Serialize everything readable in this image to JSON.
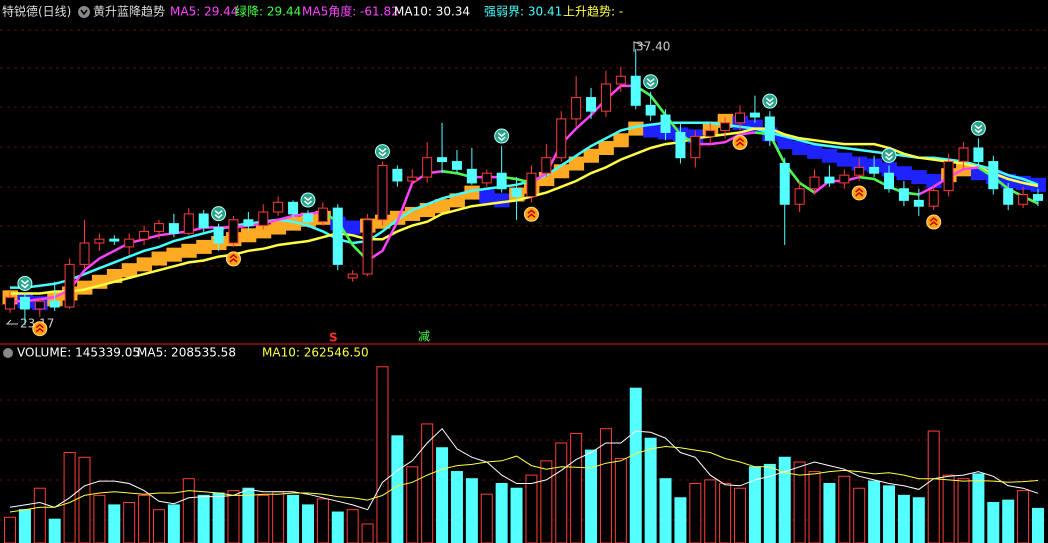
{
  "chart_data": {
    "type": "candlestick",
    "title": "特锐德(日线)",
    "indicator": "黄升蓝降趋势",
    "legend": [
      {
        "text": "MA5: 29.44",
        "color": "#ff44ff"
      },
      {
        "text": "绿降: 29.44",
        "color": "#44ff44"
      },
      {
        "text": "MA5角度: -61.82",
        "color": "#ff44ff"
      },
      {
        "text": "MA10: 30.34",
        "color": "#ffffff"
      },
      {
        "text": "强弱界: 30.41",
        "color": "#44ffff"
      },
      {
        "text": "上升趋势: -",
        "color": "#ffff44"
      }
    ],
    "annotations": {
      "high": "37.40",
      "low": "23.17",
      "s": "S",
      "jian": "减"
    },
    "ylim": [
      22.4,
      38.9
    ],
    "open": [
      24.0,
      24.6,
      24.0,
      24.4,
      24.1,
      26.3,
      27.4,
      27.6,
      27.2,
      27.6,
      28.0,
      28.4,
      27.9,
      28.9,
      28.2,
      27.4,
      28.6,
      28.3,
      29.0,
      29.5,
      28.9,
      28.5,
      29.2,
      25.6,
      25.8,
      28.6,
      31.2,
      30.6,
      30.8,
      31.8,
      31.6,
      31.2,
      30.5,
      31.0,
      30.2,
      29.8,
      31.0,
      31.8,
      33.8,
      34.9,
      34.2,
      35.6,
      36.0,
      34.5,
      34.0,
      33.1,
      31.8,
      32.9,
      33.2,
      33.6,
      34.1,
      33.9,
      31.5,
      29.4,
      30.2,
      30.8,
      30.5,
      30.9,
      31.3,
      31.0,
      30.2,
      29.6,
      29.3,
      30.1,
      31.6,
      32.3,
      31.6,
      30.2,
      29.4,
      29.9
    ],
    "high": [
      24.9,
      24.8,
      24.6,
      25.4,
      26.6,
      28.6,
      27.9,
      27.8,
      27.9,
      28.3,
      28.6,
      28.9,
      29.2,
      29.1,
      28.4,
      28.8,
      29.0,
      29.4,
      29.8,
      29.6,
      29.1,
      29.5,
      29.4,
      26.0,
      28.9,
      31.6,
      31.4,
      31.2,
      32.6,
      33.6,
      32.2,
      32.3,
      31.2,
      32.4,
      30.8,
      31.4,
      32.5,
      34.2,
      36.0,
      35.4,
      36.3,
      36.5,
      37.4,
      35.2,
      34.3,
      33.6,
      33.2,
      33.6,
      33.9,
      34.5,
      35.0,
      34.2,
      31.8,
      30.6,
      31.2,
      31.4,
      31.2,
      31.8,
      31.9,
      31.4,
      30.6,
      30.2,
      30.4,
      32.0,
      32.6,
      32.8,
      31.9,
      30.5,
      30.3,
      30.2
    ],
    "low": [
      23.8,
      23.17,
      23.6,
      23.9,
      24.0,
      26.1,
      27.0,
      27.3,
      26.8,
      27.3,
      27.6,
      27.7,
      27.8,
      27.9,
      27.0,
      27.2,
      28.0,
      28.1,
      28.8,
      28.7,
      28.2,
      28.3,
      26.0,
      25.4,
      25.7,
      28.3,
      30.3,
      30.4,
      30.5,
      31.0,
      31.0,
      30.4,
      30.3,
      30.0,
      28.6,
      29.5,
      30.8,
      31.6,
      33.4,
      33.8,
      33.9,
      35.2,
      34.3,
      33.7,
      32.7,
      31.5,
      31.3,
      32.5,
      32.8,
      33.2,
      33.6,
      32.4,
      27.3,
      29.0,
      29.9,
      30.3,
      30.2,
      30.6,
      30.8,
      30.0,
      29.3,
      28.8,
      29.1,
      29.8,
      31.2,
      31.4,
      29.9,
      29.1,
      29.2,
      29.3
    ],
    "close": [
      24.6,
      24.0,
      24.4,
      24.1,
      26.3,
      27.4,
      27.6,
      27.5,
      27.6,
      28.0,
      28.4,
      27.9,
      28.9,
      28.2,
      27.4,
      28.6,
      28.3,
      29.0,
      29.5,
      28.9,
      28.5,
      29.2,
      26.3,
      25.8,
      28.6,
      31.4,
      30.6,
      30.8,
      31.8,
      31.6,
      31.2,
      30.5,
      31.0,
      30.2,
      29.8,
      31.0,
      31.8,
      33.8,
      34.9,
      34.2,
      35.6,
      36.0,
      34.5,
      34.0,
      33.1,
      31.8,
      32.9,
      33.2,
      33.6,
      34.1,
      33.9,
      32.7,
      29.4,
      30.2,
      30.8,
      30.5,
      30.9,
      31.3,
      31.0,
      30.2,
      29.6,
      29.3,
      30.1,
      31.6,
      32.3,
      31.6,
      30.2,
      29.4,
      29.9,
      29.6
    ],
    "ma5": [
      24.4,
      24.4,
      24.5,
      24.6,
      25.0,
      26.0,
      26.6,
      27.0,
      27.4,
      27.6,
      27.8,
      27.9,
      28.0,
      28.2,
      28.2,
      28.2,
      28.3,
      28.4,
      28.6,
      28.8,
      28.9,
      29.0,
      28.5,
      27.3,
      26.5,
      27.0,
      28.5,
      30.5,
      31.0,
      31.1,
      31.0,
      30.8,
      30.8,
      30.8,
      30.7,
      30.5,
      31.0,
      32.5,
      33.3,
      34.0,
      34.8,
      35.5,
      35.5,
      35.0,
      34.0,
      33.0,
      32.5,
      32.5,
      32.6,
      33.0,
      33.1,
      33.0,
      31.5,
      30.5,
      30.0,
      30.6,
      30.6,
      30.8,
      30.7,
      30.3,
      30.0,
      29.9,
      30.3,
      30.8,
      31.2,
      31.3,
      30.8,
      30.2,
      29.8,
      29.44
    ],
    "ma10": [
      24.8,
      24.8,
      24.8,
      24.9,
      24.9,
      25.0,
      25.2,
      25.4,
      25.6,
      25.8,
      26.0,
      26.2,
      26.4,
      26.5,
      26.7,
      26.8,
      27.0,
      27.1,
      27.3,
      27.4,
      27.5,
      27.7,
      27.9,
      27.8,
      27.6,
      27.6,
      28.0,
      28.3,
      28.5,
      28.9,
      29.1,
      29.3,
      29.4,
      29.5,
      29.6,
      29.8,
      30.0,
      30.3,
      30.6,
      31.0,
      31.3,
      31.7,
      32.0,
      32.3,
      32.5,
      32.6,
      32.8,
      32.9,
      33.0,
      33.1,
      33.3,
      33.3,
      33.0,
      32.8,
      32.7,
      32.6,
      32.5,
      32.5,
      32.5,
      32.3,
      32.0,
      31.8,
      31.7,
      31.6,
      31.5,
      31.3,
      31.0,
      30.7,
      30.5,
      30.34
    ],
    "strong": [
      25.1,
      25.1,
      25.2,
      25.3,
      25.5,
      25.8,
      26.1,
      26.4,
      26.7,
      27.0,
      27.2,
      27.5,
      27.7,
      27.9,
      28.1,
      28.3,
      28.4,
      28.5,
      28.6,
      28.5,
      28.3,
      28.0,
      27.6,
      27.4,
      27.5,
      28.0,
      28.6,
      29.1,
      29.4,
      29.7,
      29.9,
      30.1,
      30.2,
      30.3,
      30.4,
      30.6,
      30.9,
      31.4,
      31.9,
      32.4,
      32.8,
      33.2,
      33.4,
      33.5,
      33.6,
      33.6,
      33.6,
      33.6,
      33.5,
      33.4,
      33.3,
      33.1,
      32.9,
      32.7,
      32.5,
      32.4,
      32.3,
      32.2,
      32.1,
      32.0,
      31.9,
      31.8,
      31.8,
      31.7,
      31.6,
      31.4,
      31.2,
      30.9,
      30.7,
      30.41
    ],
    "band": [
      24.6,
      24.4,
      24.3,
      24.5,
      24.8,
      25.1,
      25.4,
      25.7,
      26.0,
      26.3,
      26.6,
      26.8,
      27.0,
      27.2,
      27.4,
      27.6,
      27.8,
      28.0,
      28.2,
      28.4,
      28.6,
      28.7,
      28.4,
      28.2,
      28.3,
      28.5,
      28.7,
      28.9,
      29.1,
      29.3,
      29.6,
      30.0,
      29.8,
      29.6,
      29.9,
      30.3,
      30.7,
      31.1,
      31.5,
      31.9,
      32.3,
      32.7,
      33.3,
      33.2,
      33.1,
      33.0,
      32.9,
      33.3,
      33.7,
      33.6,
      33.4,
      33.0,
      32.6,
      32.3,
      32.1,
      31.9,
      31.7,
      31.5,
      31.4,
      31.2,
      31.0,
      30.8,
      30.6,
      30.9,
      31.2,
      31.0,
      30.8,
      30.6,
      30.5,
      30.4
    ],
    "sell_signals": [
      1,
      14,
      20,
      25,
      33,
      43,
      51,
      59,
      65
    ],
    "buy_signals": [
      2,
      15,
      35,
      49,
      57,
      62
    ],
    "volume_legend": [
      {
        "text": "VOLUME: 145339.05",
        "color": "#ffffff"
      },
      {
        "text": "MA5: 208535.58",
        "color": "#ffffff"
      },
      {
        "text": "MA10: 262546.50",
        "color": "#ffff44"
      }
    ],
    "vlim": [
      0,
      760000
    ],
    "volume": [
      108000,
      140000,
      230000,
      100000,
      380000,
      360000,
      200000,
      160000,
      170000,
      200000,
      140000,
      160000,
      270000,
      200000,
      210000,
      220000,
      230000,
      200000,
      215000,
      200000,
      160000,
      185000,
      130000,
      140000,
      80000,
      740000,
      450000,
      320000,
      500000,
      400000,
      300000,
      270000,
      205000,
      250000,
      230000,
      285000,
      345000,
      420000,
      460000,
      390000,
      480000,
      355000,
      650000,
      440000,
      270000,
      190000,
      250000,
      265000,
      250000,
      230000,
      320000,
      330000,
      360000,
      340000,
      300000,
      250000,
      280000,
      230000,
      260000,
      240000,
      200000,
      190000,
      470000,
      285000,
      270000,
      290000,
      170000,
      180000,
      220000,
      145339.05
    ],
    "vma5": [
      150000,
      160000,
      170000,
      150000,
      190000,
      240000,
      260000,
      260000,
      250000,
      220000,
      175000,
      165000,
      190000,
      195000,
      195000,
      200000,
      225000,
      215000,
      215000,
      215000,
      205000,
      190000,
      175000,
      160000,
      140000,
      255000,
      305000,
      345000,
      420000,
      480000,
      395000,
      360000,
      340000,
      285000,
      250000,
      250000,
      265000,
      305000,
      350000,
      380000,
      420000,
      420000,
      470000,
      465000,
      440000,
      380000,
      360000,
      285000,
      245000,
      240000,
      265000,
      280000,
      300000,
      320000,
      340000,
      325000,
      310000,
      280000,
      265000,
      250000,
      240000,
      225000,
      270000,
      280000,
      285000,
      300000,
      280000,
      240000,
      230000,
      208535.58
    ],
    "vma10": [
      130000,
      140000,
      150000,
      150000,
      170000,
      200000,
      210000,
      215000,
      210000,
      205000,
      210000,
      210000,
      220000,
      215000,
      210000,
      200000,
      200000,
      205000,
      205000,
      210000,
      210000,
      205000,
      195000,
      190000,
      180000,
      200000,
      240000,
      255000,
      285000,
      310000,
      325000,
      330000,
      340000,
      345000,
      365000,
      325000,
      310000,
      320000,
      318000,
      315000,
      335000,
      345000,
      375000,
      395000,
      405000,
      400000,
      390000,
      380000,
      355000,
      340000,
      320000,
      320000,
      295000,
      285000,
      290000,
      300000,
      305000,
      300000,
      290000,
      295000,
      285000,
      270000,
      270000,
      265000,
      260000,
      262000,
      260000,
      255000,
      258000,
      262546.5
    ]
  }
}
